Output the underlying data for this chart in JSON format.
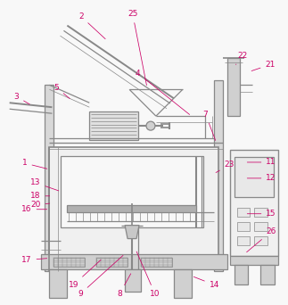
{
  "bg_color": "#f8f8f8",
  "line_color": "#888888",
  "label_color": "#cc0066",
  "figsize": [
    3.23,
    3.42
  ],
  "dpi": 100,
  "lw_main": 0.9,
  "lw_thin": 0.5,
  "lw_thick": 1.4
}
